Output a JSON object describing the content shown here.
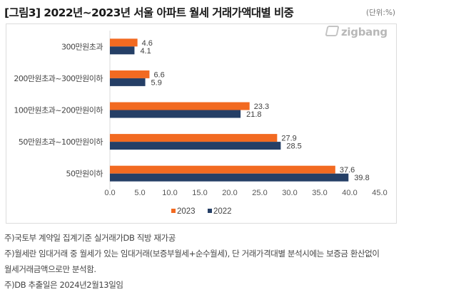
{
  "header": {
    "title": "[그림3] 2022년~2023년 서울 아파트 월세 거래가액대별 비중",
    "unit": "(단위:%)"
  },
  "brand": {
    "logo_text": "zigbang",
    "logo_icon": "zigbang-logo-icon"
  },
  "colors": {
    "series_2023": "#f26a21",
    "series_2022": "#253f66",
    "axis": "#d9d9d9",
    "text": "#404040"
  },
  "chart_data": {
    "type": "bar",
    "orientation": "horizontal",
    "title": "[그림3] 2022년~2023년 서울 아파트 월세 거래가액대별 비중",
    "unit": "(단위:%)",
    "categories": [
      "300만원초과",
      "200만원초과~300만원이하",
      "100만원초과~200만원이하",
      "50만원초과~100만원이하",
      "50만원이하"
    ],
    "series": [
      {
        "name": "2023",
        "values": [
          4.6,
          6.6,
          23.3,
          27.9,
          37.6
        ]
      },
      {
        "name": "2022",
        "values": [
          4.1,
          5.9,
          21.8,
          28.5,
          39.8
        ]
      }
    ],
    "xlim": [
      0,
      45
    ],
    "xticks": [
      "0.0",
      "5.0",
      "10.0",
      "15.0",
      "20.0",
      "25.0",
      "30.0",
      "35.0",
      "40.0",
      "45.0"
    ],
    "xlabel": "",
    "ylabel": "",
    "grid": false,
    "legend": "bottom"
  },
  "notes": [
    "주)국토부 계약일 집계기준 실거래가DB 직방 재가공",
    "주)월세란 임대거래 중 월세가 있는 임대거래(보증부월세+순수월세), 단 거래가격대별 분석시에는 보증금 환산없이",
    "월세거래금액으로만 분석함.",
    "주)DB 추출일은 2024년2월13일임"
  ]
}
